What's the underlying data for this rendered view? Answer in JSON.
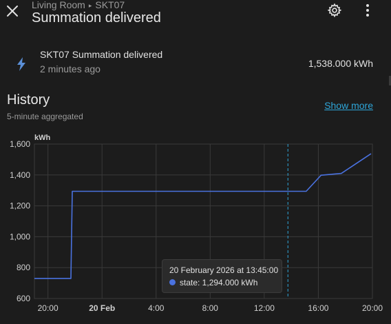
{
  "header": {
    "breadcrumb_area": "Living Room",
    "breadcrumb_device": "SKT07",
    "title": "Summation delivered",
    "close_icon": "close-icon",
    "settings_icon": "gear-icon",
    "menu_icon": "dots-vertical-icon"
  },
  "entity": {
    "icon": "lightning-icon",
    "name": "SKT07 Summation delivered",
    "last_changed": "2 minutes ago",
    "state": "1,538.000 kWh"
  },
  "history": {
    "title": "History",
    "subtitle": "5-minute aggregated",
    "show_more": "Show more"
  },
  "colors": {
    "background": "#1c1c1c",
    "series": "#4a72e0",
    "link": "#2ea6d9",
    "cursor": "#2ea6d9"
  },
  "tooltip": {
    "title": "20 February 2026 at 13:45:00",
    "row": "state: 1,294.000 kWh"
  },
  "chart_data": {
    "type": "line",
    "unit_label": "kWh",
    "ylim": [
      600,
      1600
    ],
    "yticks": [
      600,
      800,
      1000,
      1200,
      1400,
      1600
    ],
    "ytick_labels": [
      "600",
      "800",
      "1,000",
      "1,200",
      "1,400",
      "1,600"
    ],
    "xlim_hours": [
      -5,
      20
    ],
    "xticks": [
      {
        "h": -4,
        "label": "20:00",
        "bold": false
      },
      {
        "h": 0,
        "label": "20 Feb",
        "bold": true
      },
      {
        "h": 4,
        "label": "4:00",
        "bold": false
      },
      {
        "h": 8,
        "label": "8:00",
        "bold": false
      },
      {
        "h": 12,
        "label": "12:00",
        "bold": false
      },
      {
        "h": 16,
        "label": "16:00",
        "bold": false
      },
      {
        "h": 20,
        "label": "20:00",
        "bold": false
      }
    ],
    "grid": true,
    "cursor_h": 13.75,
    "series": [
      {
        "name": "state",
        "points": [
          [
            -5,
            730
          ],
          [
            -2.3,
            730
          ],
          [
            -2.2,
            1294
          ],
          [
            15.1,
            1294
          ],
          [
            16.2,
            1398
          ],
          [
            17.7,
            1410
          ],
          [
            19.9,
            1538
          ]
        ]
      }
    ]
  }
}
